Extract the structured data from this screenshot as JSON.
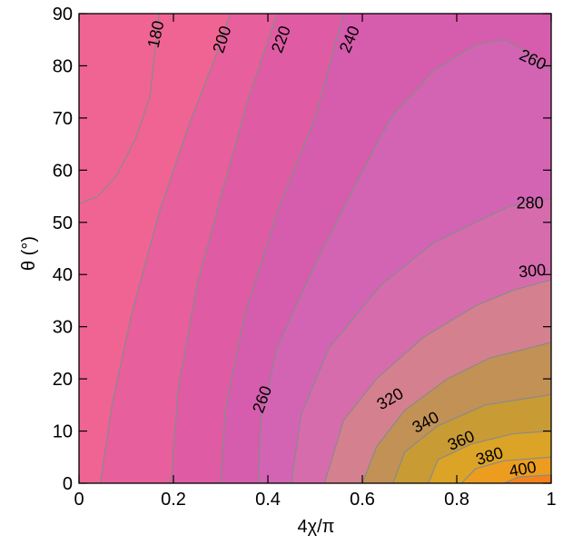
{
  "chart_data": {
    "type": "heatmap",
    "title": "",
    "xlabel": "4χ/π",
    "ylabel": "θ (°)",
    "xlim": [
      0,
      1
    ],
    "ylim": [
      0,
      90
    ],
    "x_ticks": [
      {
        "value": 0,
        "label": "0"
      },
      {
        "value": 0.2,
        "label": "0.2"
      },
      {
        "value": 0.4,
        "label": "0.4"
      },
      {
        "value": 0.6,
        "label": "0.6"
      },
      {
        "value": 0.8,
        "label": "0.8"
      },
      {
        "value": 1,
        "label": "1"
      }
    ],
    "y_ticks": [
      {
        "value": 0,
        "label": "0"
      },
      {
        "value": 10,
        "label": "10"
      },
      {
        "value": 20,
        "label": "20"
      },
      {
        "value": 30,
        "label": "30"
      },
      {
        "value": 40,
        "label": "40"
      },
      {
        "value": 50,
        "label": "50"
      },
      {
        "value": 60,
        "label": "60"
      },
      {
        "value": 70,
        "label": "70"
      },
      {
        "value": 80,
        "label": "80"
      },
      {
        "value": 90,
        "label": "90"
      }
    ],
    "grid": false,
    "contour_levels": [
      {
        "level": 180,
        "color": "#f06494",
        "path": [
          [
            0,
            53.5
          ],
          [
            0.04,
            55
          ],
          [
            0.08,
            59
          ],
          [
            0.12,
            66
          ],
          [
            0.15,
            74
          ],
          [
            0.17,
            90
          ]
        ]
      },
      {
        "level": 200,
        "color": "#e75f9c",
        "path": [
          [
            0.045,
            0
          ],
          [
            0.07,
            15
          ],
          [
            0.11,
            32
          ],
          [
            0.17,
            52
          ],
          [
            0.23,
            68
          ],
          [
            0.29,
            82
          ],
          [
            0.32,
            90
          ]
        ]
      },
      {
        "level": 220,
        "color": "#df5ca4",
        "path": [
          [
            0.195,
            0
          ],
          [
            0.21,
            18
          ],
          [
            0.25,
            38
          ],
          [
            0.31,
            58
          ],
          [
            0.36,
            74
          ],
          [
            0.42,
            90
          ]
        ]
      },
      {
        "level": 240,
        "color": "#d65cad",
        "path": [
          [
            0.3,
            0
          ],
          [
            0.31,
            14
          ],
          [
            0.35,
            32
          ],
          [
            0.42,
            52
          ],
          [
            0.5,
            70
          ],
          [
            0.56,
            90
          ]
        ]
      },
      {
        "level": 260,
        "color": "#d364b4",
        "path": [
          [
            0.38,
            0
          ],
          [
            0.385,
            12
          ],
          [
            0.42,
            26
          ],
          [
            0.5,
            42
          ],
          [
            0.59,
            58
          ],
          [
            0.66,
            70
          ],
          [
            0.75,
            79
          ],
          [
            0.84,
            84
          ],
          [
            0.9,
            85
          ],
          [
            0.94,
            83
          ],
          [
            1,
            79
          ]
        ]
      },
      {
        "level": 280,
        "color": "#d76cad",
        "path": [
          [
            0.45,
            0
          ],
          [
            0.47,
            13
          ],
          [
            0.53,
            26
          ],
          [
            0.64,
            38
          ],
          [
            0.75,
            46
          ],
          [
            0.84,
            50
          ],
          [
            0.91,
            53
          ],
          [
            1,
            54.5
          ]
        ]
      },
      {
        "level": 300,
        "color": "#d5808e",
        "path": [
          [
            0.52,
            0
          ],
          [
            0.56,
            12
          ],
          [
            0.63,
            20
          ],
          [
            0.73,
            28
          ],
          [
            0.84,
            34
          ],
          [
            0.92,
            37
          ],
          [
            1,
            39
          ]
        ]
      },
      {
        "level": 320,
        "color": "#c29156",
        "path": [
          [
            0.6,
            0
          ],
          [
            0.63,
            7
          ],
          [
            0.69,
            14
          ],
          [
            0.78,
            20
          ],
          [
            0.87,
            24
          ],
          [
            1,
            27
          ]
        ]
      },
      {
        "level": 340,
        "color": "#c99b35",
        "path": [
          [
            0.665,
            0
          ],
          [
            0.69,
            6
          ],
          [
            0.76,
            11
          ],
          [
            0.86,
            15
          ],
          [
            1,
            17
          ]
        ]
      },
      {
        "level": 360,
        "color": "#dba426",
        "path": [
          [
            0.74,
            0
          ],
          [
            0.76,
            4.5
          ],
          [
            0.83,
            7.5
          ],
          [
            0.92,
            9.5
          ],
          [
            1,
            10
          ]
        ]
      },
      {
        "level": 380,
        "color": "#ec9d1f",
        "path": [
          [
            0.81,
            0
          ],
          [
            0.84,
            2.8
          ],
          [
            0.9,
            4.3
          ],
          [
            1,
            5
          ]
        ]
      },
      {
        "level": 400,
        "color": "#f3821d",
        "path": [
          [
            0.9,
            0
          ],
          [
            0.93,
            1.2
          ],
          [
            1,
            1.6
          ]
        ]
      }
    ],
    "contour_labels": [
      {
        "text": "180",
        "x": 0.165,
        "y": 86,
        "angle": -78
      },
      {
        "text": "200",
        "x": 0.305,
        "y": 85,
        "angle": -72
      },
      {
        "text": "220",
        "x": 0.43,
        "y": 85,
        "angle": -70
      },
      {
        "text": "240",
        "x": 0.575,
        "y": 85,
        "angle": -67
      },
      {
        "text": "260",
        "x": 0.96,
        "y": 81,
        "angle": 25
      },
      {
        "text": "280",
        "x": 0.955,
        "y": 53.5,
        "angle": 0
      },
      {
        "text": "300",
        "x": 0.96,
        "y": 40.5,
        "angle": -5
      },
      {
        "text": "260",
        "x": 0.39,
        "y": 16,
        "angle": -70
      },
      {
        "text": "320",
        "x": 0.66,
        "y": 16,
        "angle": -30
      },
      {
        "text": "340",
        "x": 0.735,
        "y": 11.5,
        "angle": -28
      },
      {
        "text": "360",
        "x": 0.81,
        "y": 8,
        "angle": -23
      },
      {
        "text": "380",
        "x": 0.87,
        "y": 5,
        "angle": -17
      },
      {
        "text": "400",
        "x": 0.94,
        "y": 2.5,
        "angle": -10
      }
    ]
  }
}
